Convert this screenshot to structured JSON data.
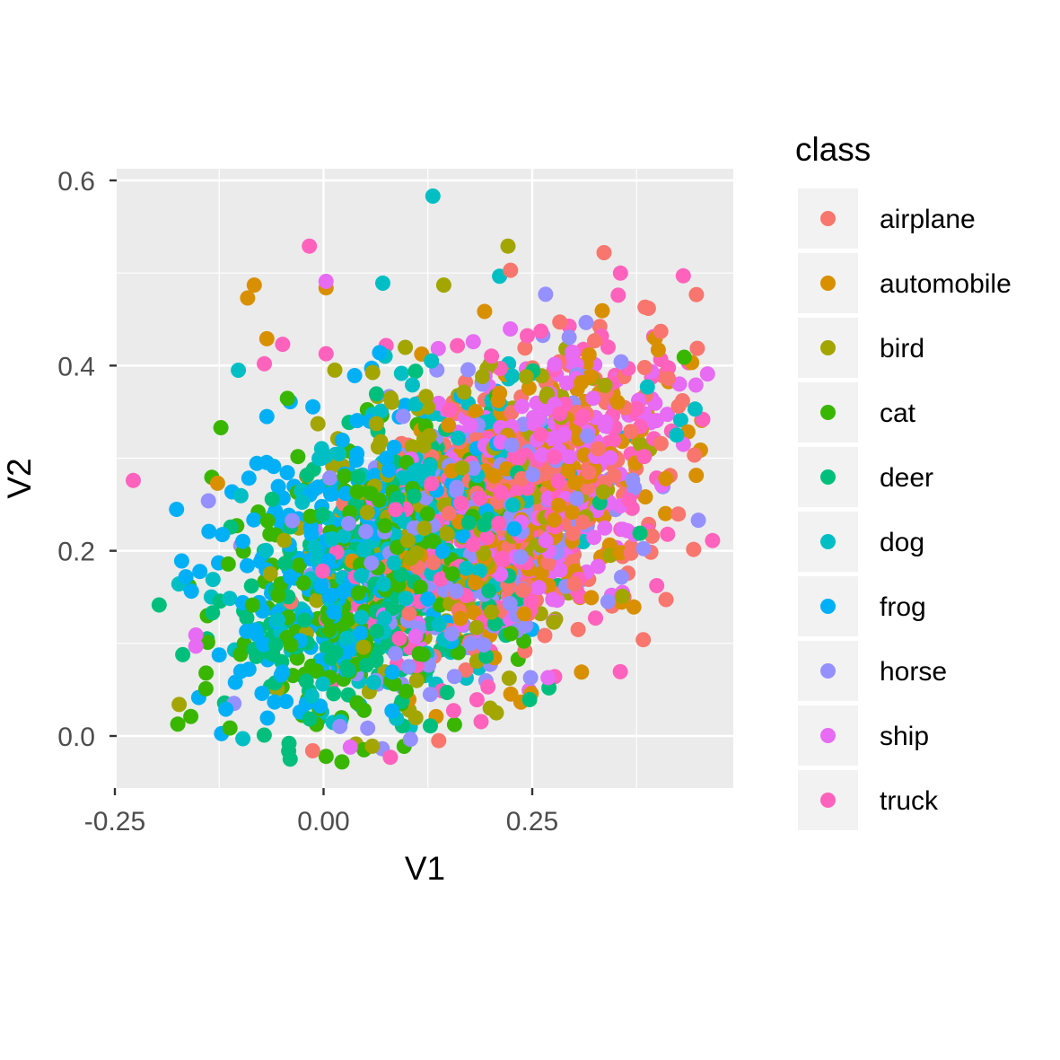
{
  "chart_data": {
    "type": "scatter",
    "xlabel": "V1",
    "ylabel": "V2",
    "xlim": [
      -0.25,
      0.5
    ],
    "ylim": [
      -0.05,
      0.61
    ],
    "x_ticks": [
      -0.25,
      0.0,
      0.25
    ],
    "x_tick_labels": [
      "-0.25",
      "0.00",
      "0.25"
    ],
    "y_ticks": [
      0.0,
      0.2,
      0.4,
      0.6
    ],
    "y_tick_labels": [
      "0.0",
      "0.2",
      "0.4",
      "0.6"
    ],
    "grid": true,
    "legend": {
      "title": "class",
      "placement": "right"
    },
    "series": [
      {
        "name": "airplane",
        "color": "#F8766D",
        "center": [
          0.26,
          0.26
        ],
        "points": [
          [
            0.336,
            0.522
          ],
          [
            0.224,
            0.503
          ],
          [
            0.283,
            0.447
          ],
          [
            0.404,
            0.437
          ],
          [
            0.413,
            0.386
          ],
          [
            0.383,
            0.104
          ],
          [
            0.305,
            0.115
          ],
          [
            0.138,
            -0.005
          ],
          [
            -0.013,
            -0.016
          ]
        ]
      },
      {
        "name": "automobile",
        "color": "#D89000",
        "center": [
          0.23,
          0.24
        ],
        "points": [
          [
            -0.083,
            0.487
          ],
          [
            0.003,
            0.484
          ],
          [
            -0.091,
            0.473
          ],
          [
            -0.068,
            0.429
          ],
          [
            0.401,
            0.417
          ],
          [
            0.309,
            0.069
          ],
          [
            0.41,
            0.278
          ],
          [
            -0.127,
            0.273
          ]
        ]
      },
      {
        "name": "bird",
        "color": "#A3A500",
        "center": [
          0.15,
          0.22
        ],
        "points": [
          [
            0.221,
            0.529
          ],
          [
            0.144,
            0.487
          ],
          [
            0.358,
            0.151
          ],
          [
            0.207,
            0.025
          ],
          [
            -0.173,
            0.034
          ]
        ]
      },
      {
        "name": "cat",
        "color": "#39B600",
        "center": [
          0.06,
          0.18
        ],
        "points": [
          [
            -0.123,
            0.333
          ],
          [
            0.432,
            0.409
          ],
          [
            -0.141,
            0.051
          ],
          [
            -0.159,
            0.021
          ],
          [
            0.022,
            -0.028
          ],
          [
            0.003,
            -0.022
          ]
        ]
      },
      {
        "name": "deer",
        "color": "#00BF7D",
        "center": [
          0.08,
          0.17
        ],
        "points": [
          [
            0.379,
            0.219
          ],
          [
            0.27,
            0.052
          ],
          [
            -0.04,
            -0.025
          ],
          [
            -0.133,
            0.133
          ],
          [
            0.128,
            0.011
          ]
        ]
      },
      {
        "name": "dog",
        "color": "#00BFC4",
        "center": [
          0.1,
          0.2
        ],
        "points": [
          [
            0.131,
            0.583
          ],
          [
            0.071,
            0.489
          ],
          [
            -0.102,
            0.395
          ],
          [
            0.445,
            0.353
          ],
          [
            0.423,
            0.325
          ],
          [
            0.388,
            0.377
          ],
          [
            0.06,
            0.058
          ]
        ]
      },
      {
        "name": "frog",
        "color": "#00B0F6",
        "center": [
          0.03,
          0.2
        ],
        "points": [
          [
            -0.17,
            0.189
          ],
          [
            -0.165,
            0.172
          ],
          [
            -0.068,
            0.345
          ],
          [
            -0.117,
            0.029
          ],
          [
            0.082,
            0.027
          ]
        ]
      },
      {
        "name": "horse",
        "color": "#9590FF",
        "center": [
          0.18,
          0.21
        ],
        "points": [
          [
            0.449,
            0.233
          ],
          [
            0.266,
            0.477
          ],
          [
            -0.138,
            0.254
          ],
          [
            0.248,
            0.063
          ]
        ]
      },
      {
        "name": "ship",
        "color": "#E76BF3",
        "center": [
          0.24,
          0.27
        ],
        "points": [
          [
            0.46,
            0.391
          ],
          [
            0.446,
            0.379
          ],
          [
            -0.153,
            0.109
          ],
          [
            -0.153,
            0.097
          ],
          [
            0.003,
            0.491
          ],
          [
            0.269,
            0.063
          ],
          [
            0.032,
            -0.012
          ]
        ]
      },
      {
        "name": "truck",
        "color": "#FF62BC",
        "center": [
          0.22,
          0.24
        ],
        "points": [
          [
            -0.017,
            0.529
          ],
          [
            0.431,
            0.497
          ],
          [
            -0.228,
            0.276
          ],
          [
            0.466,
            0.211
          ],
          [
            0.353,
            0.476
          ],
          [
            -0.071,
            0.402
          ],
          [
            -0.049,
            0.423
          ],
          [
            0.08,
            -0.023
          ],
          [
            0.197,
            0.053
          ]
        ]
      }
    ]
  }
}
